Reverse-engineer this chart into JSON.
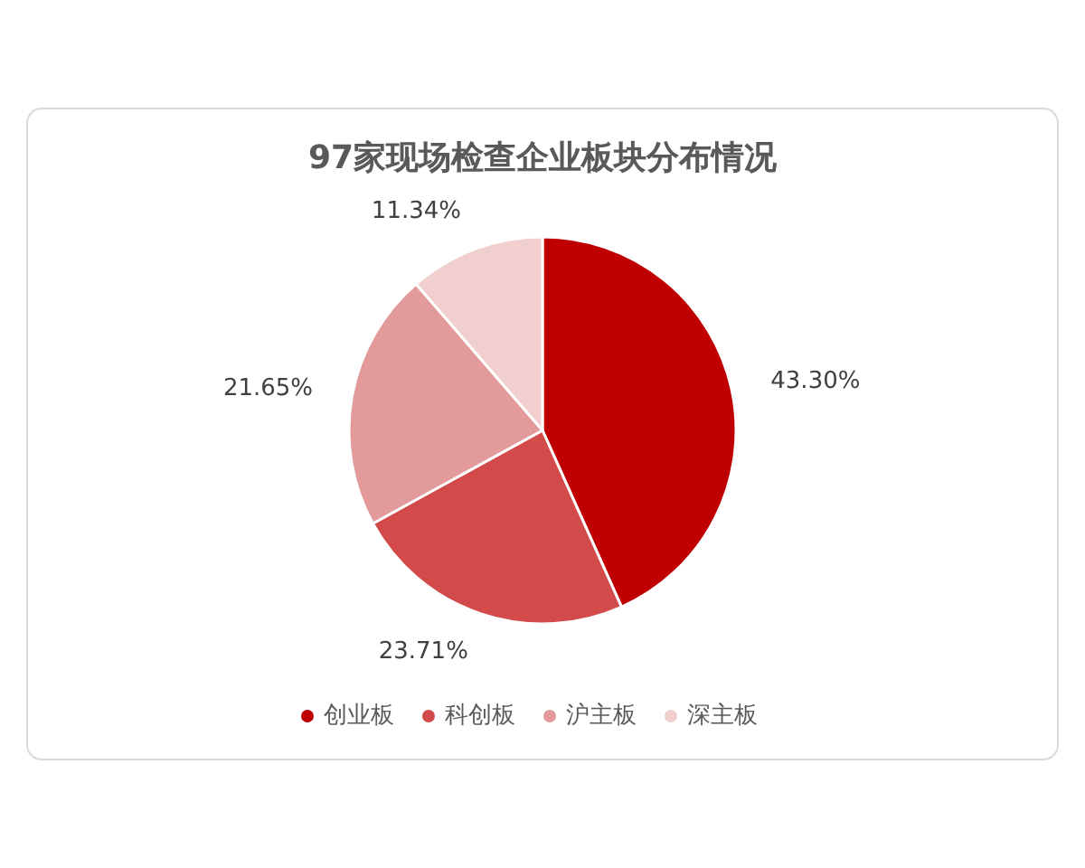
{
  "chart_data": {
    "type": "pie",
    "title": "97家现场检查企业板块分布情况",
    "categories": [
      "创业板",
      "科创板",
      "沪主板",
      "深主板"
    ],
    "values": [
      43.3,
      23.71,
      21.65,
      11.34
    ],
    "value_labels": [
      "43.30%",
      "23.71%",
      "21.65%",
      "11.34%"
    ],
    "colors": [
      "#c00000",
      "#d24a4a",
      "#e29a9a",
      "#f2cfcf"
    ],
    "legend": "bottom"
  }
}
